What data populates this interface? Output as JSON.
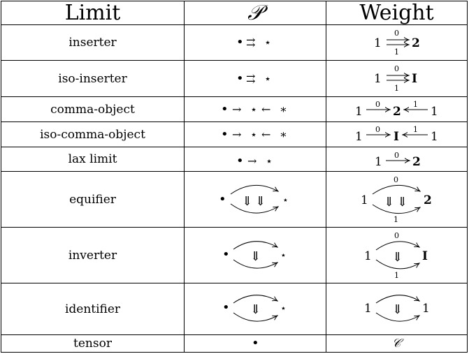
{
  "header": {
    "col_limit": "Limit",
    "col_p": "𝒫",
    "col_weight": "Weight"
  },
  "rows": [
    {
      "limit": "inserter",
      "p": [
        "•",
        "⇉",
        "⋆"
      ],
      "w": [
        "1",
        "0",
        "1",
        "2"
      ]
    },
    {
      "limit": "iso-inserter",
      "p": [
        "•",
        "⇉",
        "⋆"
      ],
      "w": [
        "1",
        "0",
        "1",
        "I"
      ]
    },
    {
      "limit": "comma-object",
      "p": [
        "•",
        "→",
        "⋆",
        "←",
        "∗"
      ],
      "w": [
        "1",
        "0",
        "2",
        "1",
        "1"
      ]
    },
    {
      "limit": "iso-comma-object",
      "p": [
        "•",
        "→",
        "⋆",
        "←",
        "∗"
      ],
      "w": [
        "1",
        "0",
        "I",
        "1",
        "1"
      ]
    },
    {
      "limit": "lax limit",
      "p": [
        "•",
        "→",
        "⋆"
      ],
      "w": [
        "1",
        "0",
        "2"
      ]
    },
    {
      "limit": "equifier",
      "p": [
        "•",
        "⋆"
      ],
      "w": [
        "1",
        "0",
        "1",
        "2"
      ]
    },
    {
      "limit": "inverter",
      "p": [
        "•",
        "⋆"
      ],
      "w": [
        "1",
        "0",
        "1",
        "I"
      ]
    },
    {
      "limit": "identifier",
      "p": [
        "•",
        "⋆"
      ],
      "w": [
        "1",
        "1"
      ]
    },
    {
      "limit": "tensor",
      "p": [
        "•"
      ],
      "w": [
        "𝒞"
      ]
    }
  ]
}
